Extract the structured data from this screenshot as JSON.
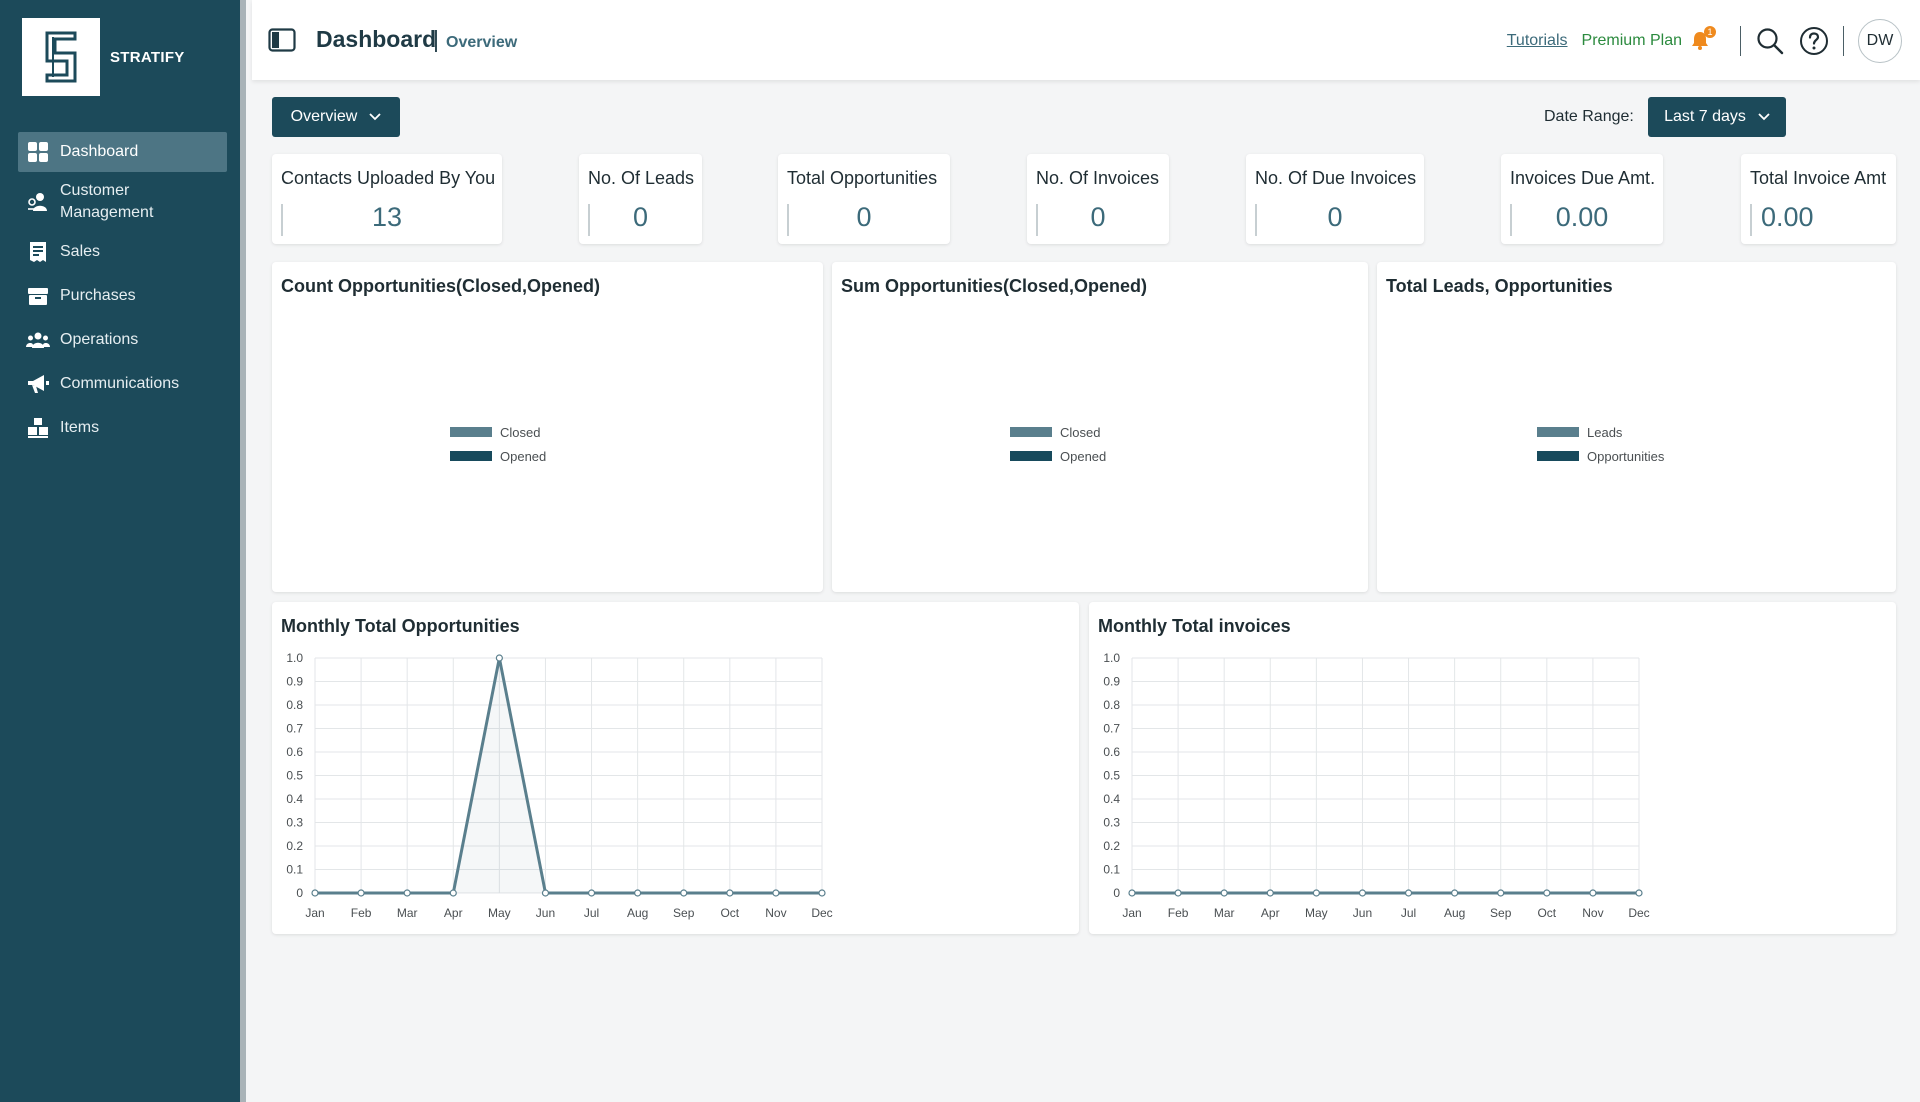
{
  "brand": {
    "name": "STRATIFY",
    "logo_letter": "S"
  },
  "sidebar": {
    "items": [
      {
        "label": "Dashboard",
        "icon": "dashboard-grid-icon",
        "active": true
      },
      {
        "label": "Customer Management",
        "line1": "Customer",
        "line2": "Management",
        "icon": "customer-management-icon"
      },
      {
        "label": "Sales",
        "icon": "sales-receipt-icon"
      },
      {
        "label": "Purchases",
        "icon": "purchases-box-icon"
      },
      {
        "label": "Operations",
        "icon": "operations-team-icon"
      },
      {
        "label": "Communications",
        "icon": "megaphone-icon"
      },
      {
        "label": "Items",
        "icon": "items-boxes-icon"
      }
    ]
  },
  "header": {
    "title": "Dashboard",
    "separator": "|",
    "breadcrumb": "Overview",
    "tutorials_label": "Tutorials",
    "premium_label": "Premium Plan",
    "notification_count": "1",
    "avatar_initials": "DW"
  },
  "controls": {
    "view_select": "Overview",
    "date_range_label": "Date Range:",
    "date_range_value": "Last 7 days"
  },
  "kpis": [
    {
      "label": "Contacts Uploaded By You",
      "value": "13"
    },
    {
      "label": "No. Of Leads",
      "value": "0"
    },
    {
      "label": "Total Opportunities",
      "value": "0"
    },
    {
      "label": "No. Of Invoices",
      "value": "0"
    },
    {
      "label": "No. Of Due Invoices",
      "value": "0"
    },
    {
      "label": "Invoices Due Amt.",
      "value": "0.00"
    },
    {
      "label": "Total Invoice Amt",
      "value": "0.00"
    }
  ],
  "colors": {
    "sidebar_bg": "#1c4a5a",
    "accent": "#3c6a7a",
    "series_light": "#5a7f8d",
    "series_dark": "#174a5c",
    "premium": "#2b8a3e",
    "badge": "#ef8a1e"
  },
  "chart_data": [
    {
      "type": "bar",
      "title": "Count Opportunities(Closed,Opened)",
      "series": [
        {
          "name": "Closed",
          "values": []
        },
        {
          "name": "Opened",
          "values": []
        }
      ],
      "legend": "center"
    },
    {
      "type": "bar",
      "title": "Sum Opportunities(Closed,Opened)",
      "series": [
        {
          "name": "Closed",
          "values": []
        },
        {
          "name": "Opened",
          "values": []
        }
      ],
      "legend": "center"
    },
    {
      "type": "bar",
      "title": "Total Leads, Opportunities",
      "series": [
        {
          "name": "Leads",
          "values": []
        },
        {
          "name": "Opportunities",
          "values": []
        }
      ],
      "legend": "center"
    },
    {
      "type": "line",
      "title": "Monthly Total Opportunities",
      "categories": [
        "Jan",
        "Feb",
        "Mar",
        "Apr",
        "May",
        "Jun",
        "Jul",
        "Aug",
        "Sep",
        "Oct",
        "Nov",
        "Dec"
      ],
      "values": [
        0,
        0,
        0,
        0,
        1,
        0,
        0,
        0,
        0,
        0,
        0,
        0
      ],
      "ylim": [
        0,
        1
      ],
      "yticks": [
        "0",
        "0.1",
        "0.2",
        "0.3",
        "0.4",
        "0.5",
        "0.6",
        "0.7",
        "0.8",
        "0.9",
        "1.0"
      ],
      "grid": true
    },
    {
      "type": "line",
      "title": "Monthly Total invoices",
      "categories": [
        "Jan",
        "Feb",
        "Mar",
        "Apr",
        "May",
        "Jun",
        "Jul",
        "Aug",
        "Sep",
        "Oct",
        "Nov",
        "Dec"
      ],
      "values": [
        0,
        0,
        0,
        0,
        0,
        0,
        0,
        0,
        0,
        0,
        0,
        0
      ],
      "ylim": [
        0,
        1
      ],
      "yticks": [
        "0",
        "0.1",
        "0.2",
        "0.3",
        "0.4",
        "0.5",
        "0.6",
        "0.7",
        "0.8",
        "0.9",
        "1.0"
      ],
      "grid": true
    }
  ]
}
